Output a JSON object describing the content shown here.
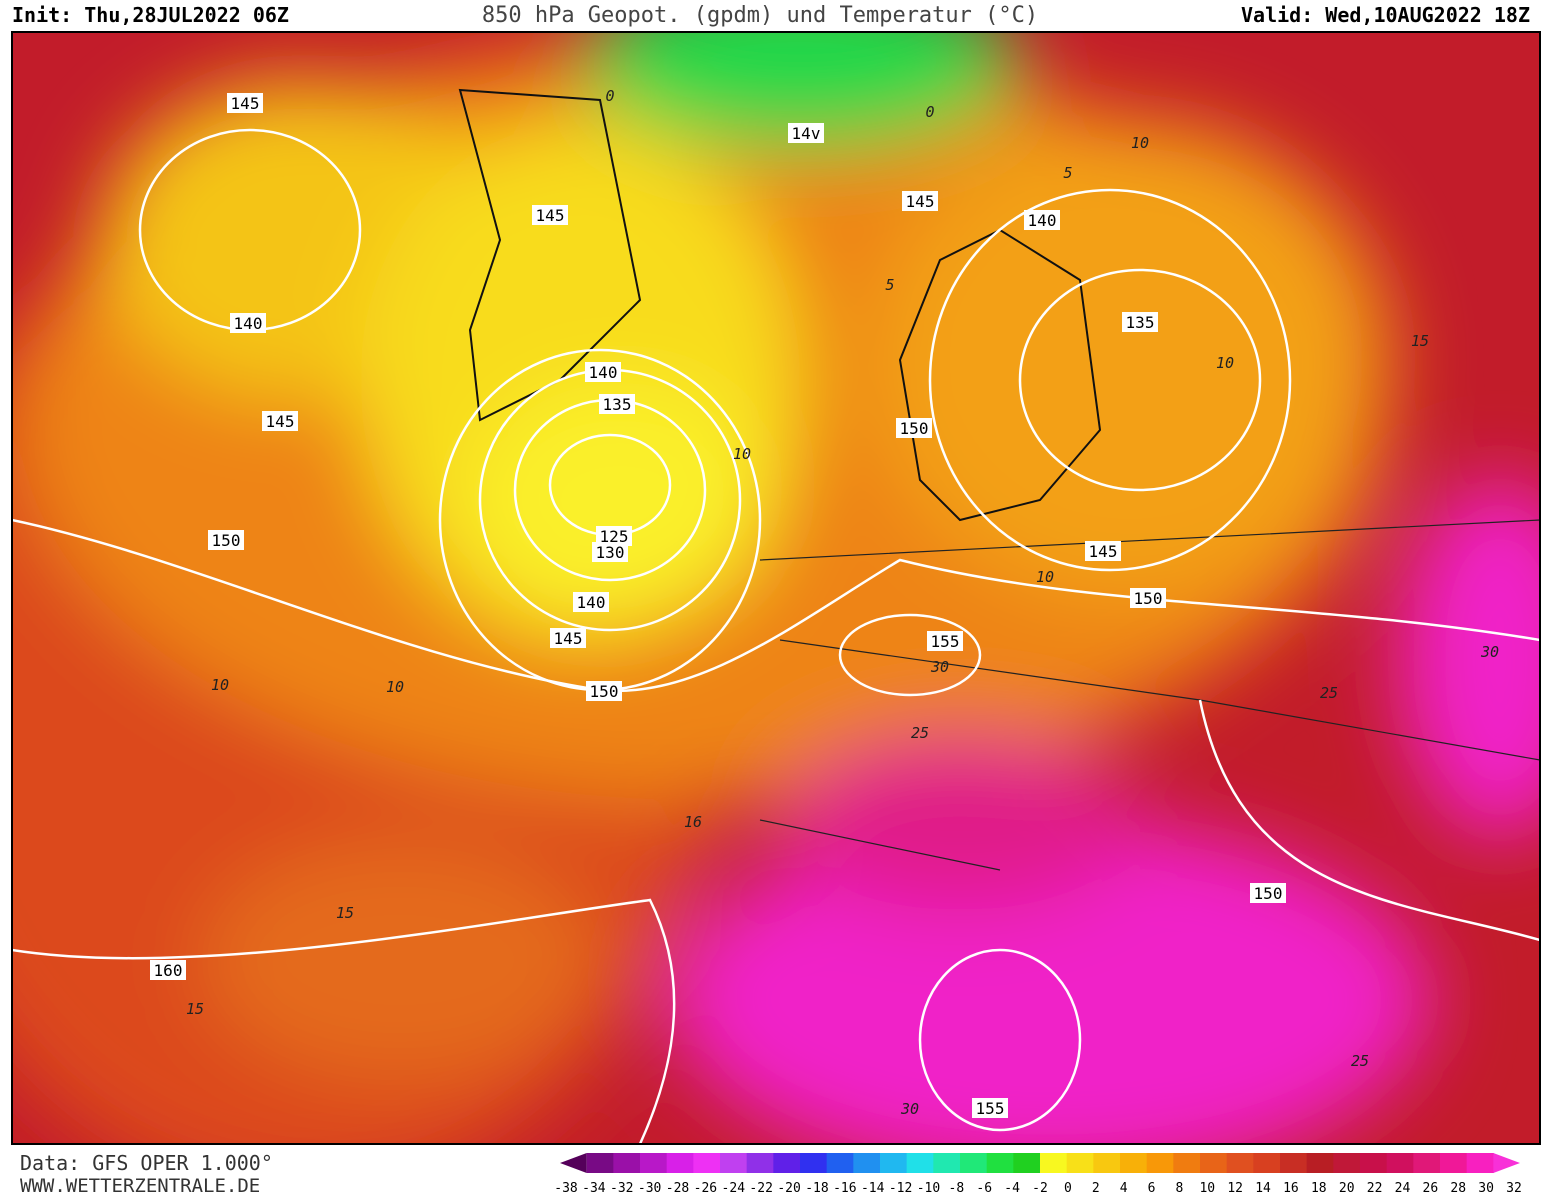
{
  "header": {
    "init": "Init: Thu,28JUL2022 06Z",
    "title": "850 hPa Geopot. (gpdm) und Temperatur (°C)",
    "valid": "Valid: Wed,10AUG2022 18Z"
  },
  "map": {
    "geopotential_labels": [
      "145",
      "145",
      "145",
      "140",
      "140",
      "135",
      "145",
      "140",
      "135",
      "150",
      "150",
      "125",
      "130",
      "140",
      "145",
      "150",
      "145",
      "155",
      "150",
      "150",
      "160",
      "155",
      "14v"
    ],
    "temperature_labels": [
      "10",
      "5",
      "5",
      "10",
      "15",
      "10",
      "10",
      "10",
      "10",
      "30",
      "30",
      "25",
      "25",
      "16",
      "15",
      "15",
      "25",
      "30",
      "0",
      "0"
    ]
  },
  "footer": {
    "data": "Data: GFS OPER 1.000°",
    "site": "WWW.WETTERZENTRALE.DE"
  },
  "colorbar": {
    "labels": [
      "-38",
      "-34",
      "-32",
      "-30",
      "-28",
      "-26",
      "-24",
      "-22",
      "-20",
      "-18",
      "-16",
      "-14",
      "-12",
      "-10",
      "-8",
      "-6",
      "-4",
      "-2",
      "0",
      "2",
      "4",
      "6",
      "8",
      "10",
      "12",
      "14",
      "16",
      "18",
      "20",
      "22",
      "24",
      "26",
      "28",
      "30",
      "32"
    ],
    "colors": [
      "#55005a",
      "#780a85",
      "#9a10a8",
      "#b818c8",
      "#d820e8",
      "#ee30f4",
      "#c040f0",
      "#9030e8",
      "#6020e8",
      "#3030f0",
      "#2060f0",
      "#2090f0",
      "#20b8f0",
      "#20e0e8",
      "#20e8b0",
      "#20e878",
      "#20e040",
      "#20d020",
      "#f8f820",
      "#f8e018",
      "#f8c810",
      "#f8b008",
      "#f89808",
      "#f07c10",
      "#e86418",
      "#e05020",
      "#d84020",
      "#c82e24",
      "#b81e24",
      "#c01838",
      "#c8104a",
      "#d0105e",
      "#e01878",
      "#f01898",
      "#f820c0",
      "#f830d8"
    ]
  }
}
